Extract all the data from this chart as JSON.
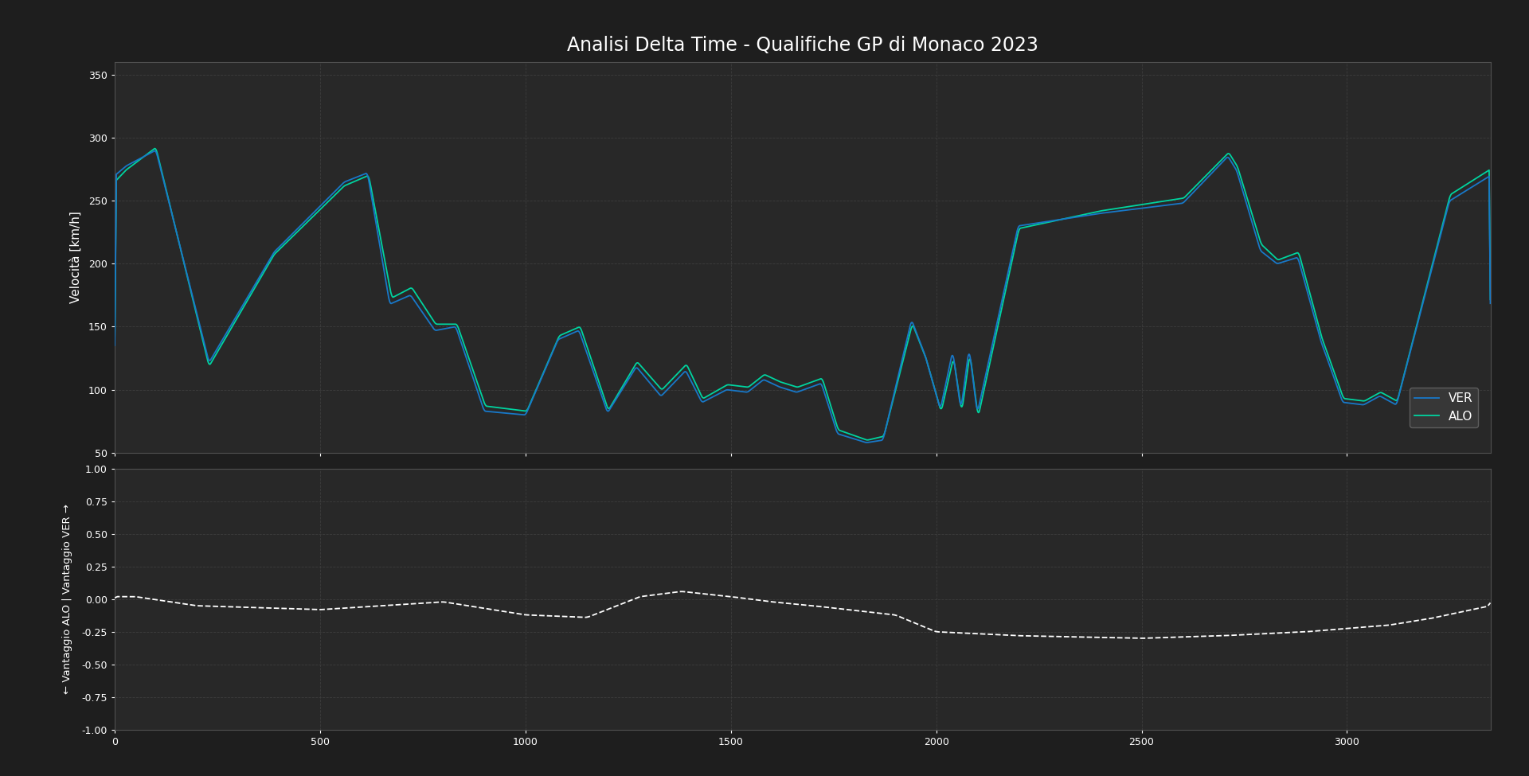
{
  "title": "Analisi Delta Time - Qualifiche GP di Monaco 2023",
  "title_fontsize": 17,
  "background_color": "#1e1e1e",
  "axes_bg_color": "#282828",
  "grid_color": "#3d3d3d",
  "text_color": "#ffffff",
  "ver_color": "#1878c8",
  "alo_color": "#00d4a0",
  "delta_color": "#ffffff",
  "ylabel_speed": "Velocità [km/h]",
  "ylabel_delta": "← Vantaggio ALO | Vantaggio VER →",
  "ylim_speed": [
    50,
    360
  ],
  "ylim_delta": [
    -1.0,
    1.0
  ],
  "yticks_speed": [
    50,
    100,
    150,
    200,
    250,
    300,
    350
  ],
  "yticks_delta": [
    -1.0,
    -0.75,
    -0.5,
    -0.25,
    0.0,
    0.25,
    0.5,
    0.75,
    1.0
  ],
  "xlim": [
    0,
    3350
  ],
  "xticks_speed": [
    0,
    500,
    1000,
    1500,
    2000,
    2500,
    3000
  ],
  "xticks_delta": [
    0,
    500,
    1000,
    1500,
    2000,
    2500,
    3000
  ],
  "legend_labels": [
    "VER",
    "ALO"
  ]
}
